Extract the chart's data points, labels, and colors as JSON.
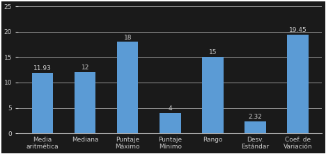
{
  "categories": [
    "Media\naritmética",
    "Mediana",
    "Puntaje\nMáximo",
    "Puntaje\nMínimo",
    "Rango",
    "Desv.\nEstándar",
    "Coef. de\nVariación"
  ],
  "values": [
    11.93,
    12,
    18,
    4,
    15,
    2.32,
    19.45
  ],
  "labels": [
    "11.93",
    "12",
    "18",
    "4",
    "15",
    "2.32",
    "19.45"
  ],
  "bar_color": "#5B9BD5",
  "ylim": [
    0,
    25
  ],
  "yticks": [
    0,
    5,
    10,
    15,
    20,
    25
  ],
  "grid_color": "#AAAAAA",
  "background_color": "#1A1A1A",
  "plot_bg_color": "#1A1A1A",
  "text_color": "#CCCCCC",
  "label_fontsize": 6.5,
  "tick_fontsize": 6.5,
  "bar_width": 0.5
}
